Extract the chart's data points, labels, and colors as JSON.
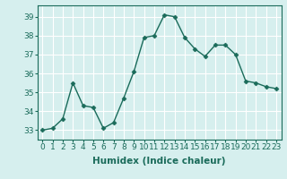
{
  "x": [
    0,
    1,
    2,
    3,
    4,
    5,
    6,
    7,
    8,
    9,
    10,
    11,
    12,
    13,
    14,
    15,
    16,
    17,
    18,
    19,
    20,
    21,
    22,
    23
  ],
  "y": [
    33.0,
    33.1,
    33.6,
    35.5,
    34.3,
    34.2,
    33.1,
    33.4,
    34.7,
    36.1,
    37.9,
    38.0,
    39.1,
    39.0,
    37.9,
    37.3,
    36.9,
    37.5,
    37.5,
    37.0,
    35.6,
    35.5,
    35.3,
    35.2
  ],
  "line_color": "#1a6b5a",
  "marker": "D",
  "marker_size": 2.5,
  "bg_color": "#d6efee",
  "grid_color": "#ffffff",
  "xlabel": "Humidex (Indice chaleur)",
  "ylabel_ticks": [
    33,
    34,
    35,
    36,
    37,
    38,
    39
  ],
  "ylim": [
    32.5,
    39.6
  ],
  "xlim": [
    -0.5,
    23.5
  ],
  "xticks": [
    0,
    1,
    2,
    3,
    4,
    5,
    6,
    7,
    8,
    9,
    10,
    11,
    12,
    13,
    14,
    15,
    16,
    17,
    18,
    19,
    20,
    21,
    22,
    23
  ],
  "tick_fontsize": 6.5,
  "label_fontsize": 7.5,
  "linewidth": 1.0
}
